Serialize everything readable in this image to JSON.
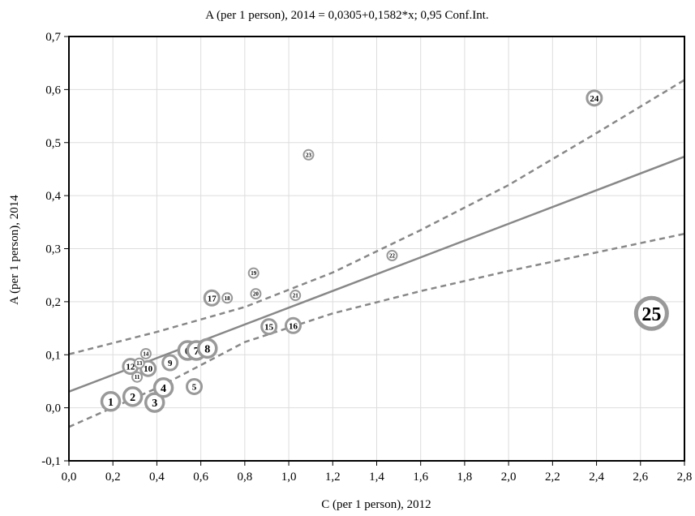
{
  "chart_data": {
    "type": "scatter",
    "title": "A (per 1 person), 2014 = 0,0305+0,1582*x; 0,95  Conf.Int.",
    "xlabel": "C (per 1 person), 2012",
    "ylabel": "A (per 1 person), 2014",
    "xlim": [
      0.0,
      2.8
    ],
    "ylim": [
      -0.1,
      0.7
    ],
    "xticks": [
      0.0,
      0.2,
      0.4,
      0.6,
      0.8,
      1.0,
      1.2,
      1.4,
      1.6,
      1.8,
      2.0,
      2.2,
      2.4,
      2.6,
      2.8
    ],
    "xtick_labels": [
      "0,0",
      "0,2",
      "0,4",
      "0,6",
      "0,8",
      "1,0",
      "1,2",
      "1,4",
      "1,6",
      "1,8",
      "2,0",
      "2,2",
      "2,4",
      "2,6",
      "2,8"
    ],
    "yticks": [
      -0.1,
      0.0,
      0.1,
      0.2,
      0.3,
      0.4,
      0.5,
      0.6,
      0.7
    ],
    "ytick_labels": [
      "-0,1",
      "0,0",
      "0,1",
      "0,2",
      "0,3",
      "0,4",
      "0,5",
      "0,6",
      "0,7"
    ],
    "grid": true,
    "regression": {
      "intercept": 0.0305,
      "slope": 0.1582
    },
    "confidence_band": {
      "x": [
        0.0,
        0.4,
        0.8,
        1.2,
        1.6,
        2.0,
        2.4,
        2.8
      ],
      "upper": [
        0.101,
        0.143,
        0.19,
        0.255,
        0.335,
        0.42,
        0.518,
        0.618
      ],
      "lower": [
        -0.036,
        0.037,
        0.124,
        0.178,
        0.22,
        0.258,
        0.293,
        0.328
      ]
    },
    "points": [
      {
        "label": "1",
        "x": 0.19,
        "y": 0.012,
        "size": 3
      },
      {
        "label": "2",
        "x": 0.29,
        "y": 0.021,
        "size": 3
      },
      {
        "label": "3",
        "x": 0.39,
        "y": 0.01,
        "size": 3
      },
      {
        "label": "4",
        "x": 0.43,
        "y": 0.038,
        "size": 3
      },
      {
        "label": "5",
        "x": 0.57,
        "y": 0.04,
        "size": 2
      },
      {
        "label": "6",
        "x": 0.54,
        "y": 0.108,
        "size": 3
      },
      {
        "label": "7",
        "x": 0.58,
        "y": 0.108,
        "size": 3
      },
      {
        "label": "8",
        "x": 0.63,
        "y": 0.112,
        "size": 3
      },
      {
        "label": "9",
        "x": 0.46,
        "y": 0.085,
        "size": 2
      },
      {
        "label": "10",
        "x": 0.36,
        "y": 0.074,
        "size": 2
      },
      {
        "label": "11",
        "x": 0.31,
        "y": 0.058,
        "size": 1
      },
      {
        "label": "12",
        "x": 0.28,
        "y": 0.078,
        "size": 2
      },
      {
        "label": "13",
        "x": 0.32,
        "y": 0.084,
        "size": 1
      },
      {
        "label": "14",
        "x": 0.35,
        "y": 0.102,
        "size": 1
      },
      {
        "label": "15",
        "x": 0.91,
        "y": 0.153,
        "size": 2
      },
      {
        "label": "16",
        "x": 1.02,
        "y": 0.155,
        "size": 2
      },
      {
        "label": "17",
        "x": 0.65,
        "y": 0.207,
        "size": 2
      },
      {
        "label": "18",
        "x": 0.72,
        "y": 0.207,
        "size": 1
      },
      {
        "label": "19",
        "x": 0.84,
        "y": 0.254,
        "size": 1
      },
      {
        "label": "20",
        "x": 0.85,
        "y": 0.215,
        "size": 1
      },
      {
        "label": "21",
        "x": 1.03,
        "y": 0.212,
        "size": 1
      },
      {
        "label": "22",
        "x": 1.47,
        "y": 0.287,
        "size": 1
      },
      {
        "label": "23",
        "x": 1.09,
        "y": 0.477,
        "size": 1
      },
      {
        "label": "24",
        "x": 2.39,
        "y": 0.584,
        "size": 2
      },
      {
        "label": "25",
        "x": 2.65,
        "y": 0.178,
        "size": 5
      }
    ],
    "colors": {
      "markers": "#999999",
      "lines": "#888888",
      "grid": "#dddddd"
    }
  }
}
